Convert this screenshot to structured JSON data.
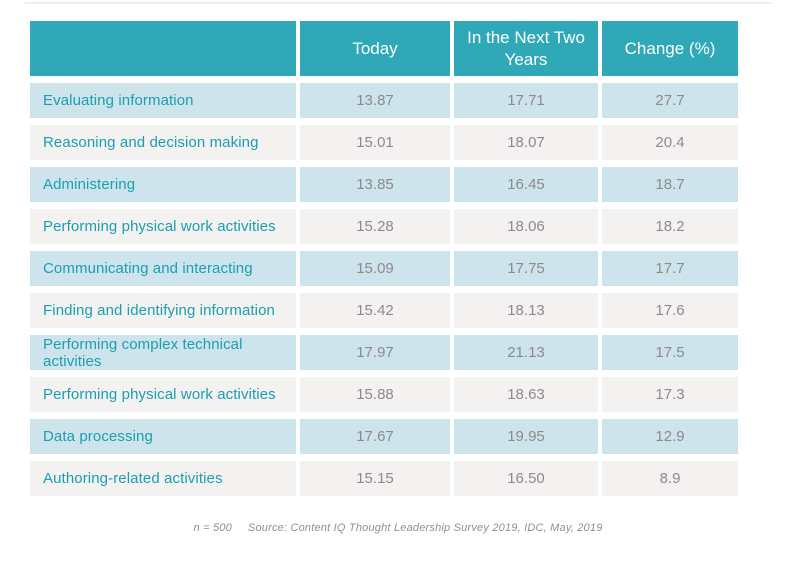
{
  "header": {
    "activity_label": "",
    "today_label": "Today",
    "next_label": "In the Next Two Years",
    "change_label": "Change (%)"
  },
  "table": {
    "rows": [
      {
        "label": "Evaluating information",
        "today": "13.87",
        "next": "17.71",
        "change": "27.7"
      },
      {
        "label": "Reasoning and decision making",
        "today": "15.01",
        "next": "18.07",
        "change": "20.4"
      },
      {
        "label": "Administering",
        "today": "13.85",
        "next": "16.45",
        "change": "18.7"
      },
      {
        "label": "Performing physical work activities",
        "today": "15.28",
        "next": "18.06",
        "change": "18.2"
      },
      {
        "label": "Communicating and interacting",
        "today": "15.09",
        "next": "17.75",
        "change": "17.7"
      },
      {
        "label": "Finding and identifying information",
        "today": "15.42",
        "next": "18.13",
        "change": "17.6"
      },
      {
        "label": "Performing complex technical activities",
        "today": "17.97",
        "next": "21.13",
        "change": "17.5"
      },
      {
        "label": "Performing physical work activities",
        "today": "15.88",
        "next": "18.63",
        "change": "17.3"
      },
      {
        "label": "Data processing",
        "today": "17.67",
        "next": "19.95",
        "change": "12.9"
      },
      {
        "label": "Authoring-related activities",
        "today": "15.15",
        "next": "16.50",
        "change": "8.9"
      }
    ]
  },
  "footer": {
    "note": "n = 500",
    "source": "Source: Content IQ Thought Leadership Survey 2019, IDC, May, 2019"
  },
  "colors": {
    "header_teal": "#2fa8b8",
    "row_blue": "#cee4ed",
    "row_gray": "#f4f2f1",
    "label_teal": "#1a9fb0",
    "value_gray": "#8c8a8a",
    "footnote_gray": "#8f8f8f"
  },
  "chart_data": {
    "type": "table",
    "title": "",
    "columns": [
      "",
      "Today",
      "In the Next Two Years",
      "Change (%)"
    ],
    "rows": [
      [
        "Evaluating information",
        13.87,
        17.71,
        27.7
      ],
      [
        "Reasoning and decision making",
        15.01,
        18.07,
        20.4
      ],
      [
        "Administering",
        13.85,
        16.45,
        18.7
      ],
      [
        "Performing physical work activities",
        15.28,
        18.06,
        18.2
      ],
      [
        "Communicating and interacting",
        15.09,
        17.75,
        17.7
      ],
      [
        "Finding and identifying information",
        15.42,
        18.13,
        17.6
      ],
      [
        "Performing complex technical activities",
        17.97,
        21.13,
        17.5
      ],
      [
        "Performing physical work activities",
        15.88,
        18.63,
        17.3
      ],
      [
        "Data processing",
        17.67,
        19.95,
        12.9
      ],
      [
        "Authoring-related activities",
        15.15,
        16.5,
        8.9
      ]
    ],
    "note": "n = 500",
    "source": "Source: Content IQ Thought Leadership Survey 2019, IDC, May, 2019",
    "layout_hints": {
      "header_background": "#2fa8b8",
      "alternating_row_colors": [
        "#cee4ed",
        "#f4f2f1"
      ],
      "first_row_color": "#cee4ed",
      "grid": "white gaps between cells"
    }
  }
}
